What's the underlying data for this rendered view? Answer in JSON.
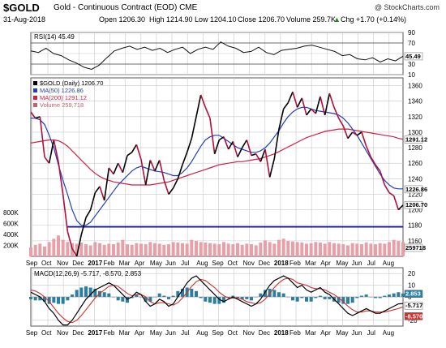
{
  "header": {
    "ticker": "$GOLD",
    "name": "Gold - Continuous Contract (EOD)",
    "exchange": "CME",
    "date": "31-Aug-2018",
    "open": "Open 1206.30",
    "high": "High 1214.90",
    "low": "Low 1204.10",
    "close": "Close 1206.70",
    "volume": "Volume 259.7K",
    "chg": "Chg +1.70 (+0.14%)",
    "chg_arrow": "▲",
    "logo": "@ StockCharts.com"
  },
  "colors": {
    "price": "#000000",
    "down": "#b0103a",
    "ma50": "#1f3fbf",
    "ma200": "#cc2244",
    "volume": "#e8a0a8",
    "support": "#10109a",
    "macd_hist": "#2a7fa0",
    "grid": "#c8c8c8"
  },
  "chart_data": [
    {
      "type": "line",
      "panel": "rsi",
      "legend": [
        "RSI(14) 45.49"
      ],
      "ylim": [
        10,
        90
      ],
      "yticks": [
        10,
        30,
        50,
        70,
        90
      ],
      "ytick_labels": [
        "10",
        "30",
        "",
        "70",
        "90"
      ],
      "reference_lines": [
        30,
        70
      ],
      "last_value_label": "45.49",
      "series": [
        {
          "values": [
            55,
            52,
            60,
            50,
            46,
            38,
            32,
            24,
            20,
            28,
            42,
            55,
            60,
            64,
            58,
            62,
            56,
            60,
            52,
            58,
            62,
            50,
            58,
            62,
            58,
            72,
            64,
            60,
            52,
            54,
            62,
            52,
            48,
            56,
            58,
            60,
            64,
            66,
            62,
            58,
            54,
            46,
            48,
            40,
            38,
            42,
            34,
            40,
            36,
            45
          ]
        }
      ]
    },
    {
      "type": "line",
      "panel": "price",
      "title": "$GOLD (Daily) 1206.70",
      "legend": [
        "$GOLD (Daily) 1206.70",
        "MA(50) 1226.86",
        "MA(200) 1291.12",
        "Volume 259,718"
      ],
      "ylim": [
        1140,
        1370
      ],
      "yticks": [
        1160,
        1180,
        1200,
        1220,
        1240,
        1260,
        1280,
        1300,
        1320,
        1340,
        1360
      ],
      "ytick_labels": [
        "1160",
        "1180",
        "1200",
        "1220",
        "1240",
        "1260",
        "1280",
        "1300",
        "1320",
        "1340",
        "1360"
      ],
      "last_value_labels": [
        "1291.12",
        "1226.86",
        "1206.70"
      ],
      "volume_ticks": [
        "200K",
        "400K",
        "600K",
        "800K"
      ],
      "volume_last_label": "259718",
      "support_level": 1178,
      "xtick_labels": [
        "Sep",
        "Oct",
        "Nov",
        "Dec",
        "2017",
        "Feb",
        "Mar",
        "Apr",
        "May",
        "Jun",
        "Jul",
        "Aug",
        "Sep",
        "Oct",
        "Nov",
        "Dec",
        "2018",
        "Feb",
        "Mar",
        "Apr",
        "May",
        "Jun",
        "Jul",
        "Aug"
      ],
      "series": [
        {
          "name": "$GOLD (Daily)",
          "values": [
            1326,
            1318,
            1320,
            1268,
            1260,
            1290,
            1262,
            1220,
            1172,
            1150,
            1140,
            1168,
            1190,
            1200,
            1222,
            1230,
            1212,
            1254,
            1246,
            1260,
            1248,
            1270,
            1274,
            1284,
            1265,
            1232,
            1264,
            1250,
            1264,
            1238,
            1220,
            1228,
            1240,
            1258,
            1274,
            1292,
            1320,
            1348,
            1332,
            1318,
            1272,
            1290,
            1294,
            1278,
            1288,
            1268,
            1280,
            1290,
            1270,
            1272,
            1262,
            1278,
            1242,
            1266,
            1304,
            1330,
            1338,
            1352,
            1332,
            1344,
            1322,
            1330,
            1324,
            1346,
            1322,
            1350,
            1332,
            1318,
            1308,
            1292,
            1300,
            1296,
            1300,
            1282,
            1268,
            1258,
            1250,
            1232,
            1222,
            1218,
            1200,
            1206
          ]
        },
        {
          "name": "MA(50)",
          "values": [
            1318,
            1318,
            1316,
            1310,
            1296,
            1280,
            1258,
            1238,
            1220,
            1200,
            1186,
            1180,
            1180,
            1184,
            1192,
            1200,
            1208,
            1216,
            1224,
            1232,
            1238,
            1244,
            1250,
            1254,
            1256,
            1254,
            1252,
            1250,
            1249,
            1248,
            1246,
            1244,
            1244,
            1248,
            1254,
            1262,
            1272,
            1282,
            1290,
            1294,
            1296,
            1296,
            1292,
            1288,
            1284,
            1280,
            1278,
            1276,
            1274,
            1274,
            1276,
            1280,
            1286,
            1294,
            1302,
            1312,
            1320,
            1326,
            1330,
            1332,
            1332,
            1330,
            1328,
            1327,
            1326,
            1325,
            1324,
            1322,
            1318,
            1312,
            1304,
            1296,
            1286,
            1276,
            1266,
            1256,
            1246,
            1238,
            1232,
            1228,
            1227,
            1227
          ]
        },
        {
          "name": "MA(200)",
          "values": [
            1286,
            1287,
            1288,
            1289,
            1290,
            1290,
            1289,
            1286,
            1282,
            1276,
            1270,
            1264,
            1258,
            1252,
            1247,
            1243,
            1240,
            1238,
            1236,
            1235,
            1234,
            1233,
            1232,
            1232,
            1232,
            1232,
            1232,
            1233,
            1234,
            1235,
            1236,
            1238,
            1240,
            1242,
            1244,
            1246,
            1248,
            1250,
            1252,
            1254,
            1256,
            1258,
            1259,
            1260,
            1261,
            1262,
            1262,
            1263,
            1264,
            1265,
            1266,
            1268,
            1270,
            1272,
            1275,
            1278,
            1281,
            1284,
            1287,
            1290,
            1293,
            1295,
            1297,
            1299,
            1301,
            1302,
            1303,
            1304,
            1304,
            1304,
            1303,
            1302,
            1301,
            1300,
            1299,
            1298,
            1297,
            1296,
            1295,
            1294,
            1292,
            1291
          ]
        },
        {
          "name": "Volume",
          "values": [
            160,
            210,
            230,
            180,
            260,
            320,
            380,
            300,
            260,
            240,
            230,
            250,
            220,
            200,
            260,
            240,
            210,
            230,
            220,
            250,
            300,
            220,
            210,
            240,
            230,
            220,
            260,
            240,
            230,
            210,
            220,
            260,
            250,
            240,
            230,
            300,
            280,
            260,
            250,
            240,
            230,
            220,
            260,
            230,
            220,
            240,
            210,
            230,
            220,
            200,
            250,
            290,
            260,
            230,
            300,
            320,
            280,
            270,
            260,
            250,
            230,
            240,
            260,
            250,
            230,
            260,
            240,
            230,
            220,
            200,
            240,
            230,
            220,
            250,
            230,
            220,
            240,
            230,
            260,
            300,
            280,
            260
          ]
        }
      ]
    },
    {
      "type": "line",
      "panel": "macd",
      "legend": [
        "MACD(12,26,9) -5.717, -8.570, 2.853"
      ],
      "ylim": [
        -25,
        25
      ],
      "yticks": [
        -20,
        0,
        10,
        20
      ],
      "ytick_labels": [
        "-20",
        "0",
        "10",
        "20"
      ],
      "last_value_labels": [
        "2.853",
        "-5.717",
        "-8.570"
      ],
      "xtick_labels": [
        "Sep",
        "Oct",
        "Nov",
        "Dec",
        "2017",
        "Feb",
        "Mar",
        "Apr",
        "May",
        "Jun",
        "Jul",
        "Aug",
        "Sep",
        "Oct",
        "Nov",
        "Dec",
        "2018",
        "Feb",
        "Mar",
        "Apr",
        "May",
        "Jun",
        "Jul",
        "Aug"
      ],
      "series": [
        {
          "name": "MACD",
          "values": [
            4,
            2,
            0,
            -4,
            -10,
            -14,
            -20,
            -24,
            -24,
            -20,
            -14,
            -8,
            -2,
            2,
            6,
            8,
            10,
            12,
            10,
            6,
            2,
            -2,
            0,
            4,
            2,
            -4,
            -8,
            -6,
            -2,
            -4,
            -8,
            -6,
            0,
            6,
            12,
            16,
            18,
            14,
            10,
            6,
            2,
            -2,
            -4,
            -2,
            0,
            -2,
            -4,
            -6,
            -8,
            -6,
            -2,
            4,
            10,
            14,
            16,
            18,
            16,
            12,
            8,
            10,
            6,
            4,
            6,
            8,
            4,
            2,
            -2,
            -6,
            -10,
            -14,
            -16,
            -14,
            -12,
            -10,
            -12,
            -14,
            -14,
            -12,
            -10,
            -8,
            -6,
            -5.717
          ]
        },
        {
          "name": "Signal",
          "values": [
            6,
            5,
            3,
            0,
            -4,
            -9,
            -14,
            -18,
            -21,
            -22,
            -20,
            -16,
            -11,
            -6,
            -1,
            3,
            6,
            9,
            10,
            9,
            6,
            3,
            1,
            2,
            2,
            0,
            -4,
            -6,
            -5,
            -5,
            -6,
            -7,
            -5,
            -1,
            4,
            9,
            13,
            15,
            14,
            11,
            8,
            4,
            1,
            -1,
            -1,
            -1,
            -2,
            -4,
            -5,
            -6,
            -5,
            -2,
            3,
            8,
            12,
            15,
            16,
            15,
            12,
            11,
            10,
            8,
            7,
            7,
            6,
            4,
            2,
            -1,
            -4,
            -8,
            -11,
            -13,
            -13,
            -12,
            -12,
            -13,
            -13,
            -13,
            -12,
            -11,
            -10,
            -8.57
          ]
        }
      ]
    }
  ]
}
